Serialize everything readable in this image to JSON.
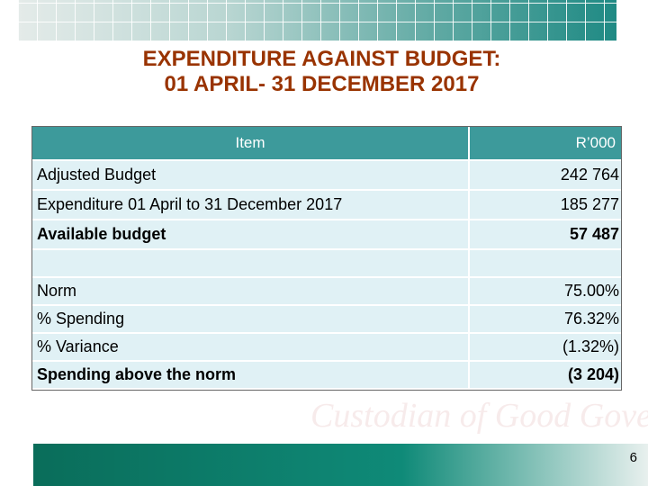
{
  "header": {
    "title_lines": [
      "EXPENDITURE AGAINST BUDGET:",
      "01 APRIL- 31 DECEMBER 2017"
    ]
  },
  "table": {
    "columns": [
      "Item",
      "R’000"
    ],
    "budget_rows": [
      {
        "item": "Adjusted Budget",
        "value": "242 764"
      },
      {
        "item": "Expenditure 01 April to 31 December 2017",
        "value": "185 277"
      },
      {
        "item": "Available budget",
        "value": "57 487",
        "bold": true
      }
    ],
    "norm_rows": [
      {
        "item": "Norm",
        "value": "75.00%"
      },
      {
        "item": "% Spending",
        "value": "76.32%"
      },
      {
        "item": "% Variance",
        "value": "(1.32%)"
      },
      {
        "item": "Spending above the norm",
        "value": "(3 204)",
        "bold": true
      }
    ]
  },
  "watermark": "Custodian of Good Governance",
  "footer": {
    "page_number": "6"
  }
}
